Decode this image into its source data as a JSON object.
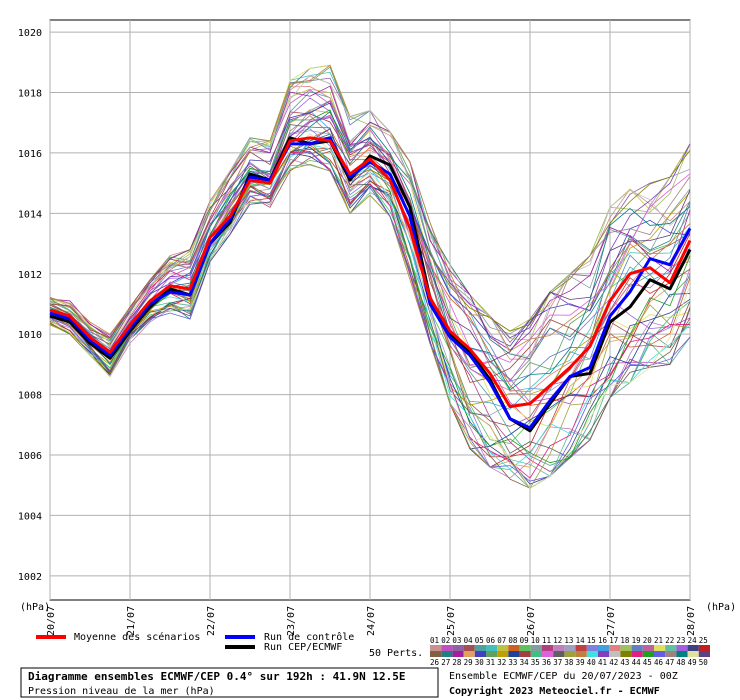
{
  "chart_data": {
    "type": "line",
    "title": "Diagramme ensembles ECMWF/CEP 0.4° sur 192h : 41.9N 12.5E",
    "subtitle": "Pression niveau de la mer (hPa)",
    "ylabel_left": "(hPa)",
    "ylabel_right": "(hPa)",
    "ylim": [
      1001.2,
      1020.4
    ],
    "y_ticks": [
      1002,
      1004,
      1006,
      1008,
      1010,
      1012,
      1014,
      1016,
      1018,
      1020
    ],
    "y_tick_labels": [
      "1002",
      "1004",
      "1006",
      "1008",
      "1010",
      "1012",
      "1014",
      "1016",
      "1018",
      "1020"
    ],
    "x_ticks": [
      0,
      24,
      48,
      72,
      96,
      120,
      144,
      168,
      192
    ],
    "x_tick_labels": [
      "20/07",
      "21/07",
      "22/07",
      "23/07",
      "24/07",
      "25/07",
      "26/07",
      "27/07",
      "28/07"
    ],
    "xlim": [
      0,
      192
    ],
    "grid": true,
    "series": [
      {
        "name": "Moyenne des scénarios",
        "color": "#ff0000",
        "x": [
          0,
          6,
          12,
          18,
          24,
          30,
          36,
          42,
          48,
          54,
          60,
          66,
          72,
          78,
          84,
          90,
          96,
          102,
          108,
          114,
          120,
          126,
          132,
          138,
          144,
          150,
          156,
          162,
          168,
          174,
          180,
          186,
          192
        ],
        "values": [
          1010.8,
          1010.6,
          1009.9,
          1009.4,
          1010.3,
          1011.1,
          1011.6,
          1011.5,
          1013.2,
          1013.9,
          1015.1,
          1015.0,
          1016.4,
          1016.5,
          1016.4,
          1015.3,
          1015.8,
          1015.1,
          1013.5,
          1011.2,
          1010.1,
          1009.5,
          1008.7,
          1007.6,
          1007.7,
          1008.3,
          1008.9,
          1009.6,
          1011.1,
          1012.0,
          1012.2,
          1011.7,
          1013.1
        ]
      },
      {
        "name": "Run de contrôle",
        "color": "#0000ff",
        "x": [
          0,
          6,
          12,
          18,
          24,
          30,
          36,
          42,
          48,
          54,
          60,
          66,
          72,
          78,
          84,
          90,
          96,
          102,
          108,
          114,
          120,
          126,
          132,
          138,
          144,
          150,
          156,
          162,
          168,
          174,
          180,
          186,
          192
        ],
        "values": [
          1010.7,
          1010.5,
          1009.8,
          1009.3,
          1010.2,
          1011.0,
          1011.4,
          1011.3,
          1013.0,
          1013.8,
          1015.2,
          1015.1,
          1016.3,
          1016.3,
          1016.5,
          1015.2,
          1015.7,
          1015.3,
          1013.9,
          1011.0,
          1009.9,
          1009.3,
          1008.4,
          1007.2,
          1006.9,
          1007.8,
          1008.6,
          1008.9,
          1010.6,
          1011.4,
          1012.5,
          1012.3,
          1013.5
        ]
      },
      {
        "name": "Run CEP/ECMWF",
        "color": "#000000",
        "x": [
          0,
          6,
          12,
          18,
          24,
          30,
          36,
          42,
          48,
          54,
          60,
          66,
          72,
          78,
          84,
          90,
          96,
          102,
          108,
          114,
          120,
          126,
          132,
          138,
          144,
          150,
          156,
          162,
          168,
          174,
          180,
          186,
          192
        ],
        "values": [
          1010.6,
          1010.4,
          1009.7,
          1009.2,
          1010.1,
          1010.9,
          1011.5,
          1011.3,
          1013.0,
          1013.7,
          1015.3,
          1015.1,
          1016.5,
          1016.3,
          1016.4,
          1015.1,
          1015.9,
          1015.6,
          1014.2,
          1011.2,
          1010.0,
          1009.4,
          1008.5,
          1007.2,
          1006.8,
          1007.7,
          1008.6,
          1008.7,
          1010.4,
          1010.9,
          1011.8,
          1011.5,
          1012.8
        ]
      }
    ],
    "ensemble_members_label": "50 Perts.",
    "ensemble_members_count": 50,
    "ensemble_envelope": {
      "x": [
        0,
        6,
        12,
        18,
        24,
        30,
        36,
        42,
        48,
        54,
        60,
        66,
        72,
        78,
        84,
        90,
        96,
        102,
        108,
        114,
        120,
        126,
        132,
        138,
        144,
        150,
        156,
        162,
        168,
        174,
        180,
        186,
        192
      ],
      "min": [
        1010.3,
        1010.0,
        1009.3,
        1008.6,
        1009.7,
        1010.4,
        1010.7,
        1010.5,
        1012.4,
        1013.3,
        1014.3,
        1014.2,
        1015.4,
        1015.6,
        1015.4,
        1014.0,
        1014.6,
        1013.9,
        1011.8,
        1009.7,
        1007.7,
        1006.2,
        1005.6,
        1005.2,
        1004.9,
        1005.3,
        1005.9,
        1006.5,
        1007.9,
        1008.4,
        1008.9,
        1009.0,
        1009.9
      ],
      "max": [
        1011.3,
        1011.1,
        1010.4,
        1010.0,
        1010.9,
        1011.8,
        1012.6,
        1012.8,
        1014.4,
        1015.4,
        1016.5,
        1016.4,
        1018.4,
        1018.8,
        1018.9,
        1017.2,
        1017.4,
        1016.7,
        1015.7,
        1013.7,
        1012.3,
        1011.3,
        1010.6,
        1010.1,
        1010.5,
        1011.4,
        1012.0,
        1012.6,
        1014.2,
        1014.8,
        1015.0,
        1015.2,
        1016.3
      ]
    },
    "legend_placement": "bottom-left"
  },
  "legend": {
    "mean_label": "Moyenne des scénarios",
    "control_label": "Run de contrôle",
    "oper_label": "Run CEP/ECMWF",
    "perts_label": "50 Perts."
  },
  "pert_numbers_row1": [
    "01",
    "02",
    "03",
    "04",
    "05",
    "06",
    "07",
    "08",
    "09",
    "10",
    "11",
    "12",
    "13",
    "14",
    "15",
    "16",
    "17",
    "18",
    "19",
    "20",
    "21",
    "22",
    "23",
    "24",
    "25"
  ],
  "pert_numbers_row2": [
    "26",
    "27",
    "28",
    "29",
    "30",
    "31",
    "32",
    "33",
    "34",
    "35",
    "36",
    "37",
    "38",
    "39",
    "40",
    "41",
    "42",
    "43",
    "44",
    "45",
    "46",
    "47",
    "48",
    "49",
    "50"
  ],
  "pert_colors_row1": [
    "#c89090",
    "#c050c0",
    "#9060a0",
    "#a05050",
    "#50a0a0",
    "#40c0c0",
    "#c0c040",
    "#d06020",
    "#60c060",
    "#80a0a0",
    "#b04080",
    "#c080c0",
    "#a0a0c0",
    "#c04040",
    "#8080e0",
    "#40a0e0",
    "#e08080",
    "#a0c060",
    "#6080c0",
    "#c060a0",
    "#e0e060",
    "#60c0a0",
    "#a060e0",
    "#404080",
    "#c02020"
  ],
  "pert_colors_row2": [
    "#806040",
    "#208080",
    "#a020a0",
    "#e0a060",
    "#4040c0",
    "#60a060",
    "#c0a000",
    "#2040a0",
    "#a04040",
    "#40c080",
    "#e060e0",
    "#606060",
    "#a0a040",
    "#c08040",
    "#40e0e0",
    "#8040c0",
    "#c0c0c0",
    "#808000",
    "#e02080",
    "#20a020",
    "#6060e0",
    "#a08080",
    "#008080",
    "#e0e0a0",
    "#604080"
  ],
  "info": {
    "title": "Diagramme ensembles ECMWF/CEP 0.4° sur 192h : 41.9N 12.5E",
    "subtitle": "Pression niveau de la mer (hPa)",
    "run": "Ensemble ECMWF/CEP du 20/07/2023 - 00Z",
    "copyright": "Copyright 2023 Meteociel.fr - ECMWF"
  }
}
